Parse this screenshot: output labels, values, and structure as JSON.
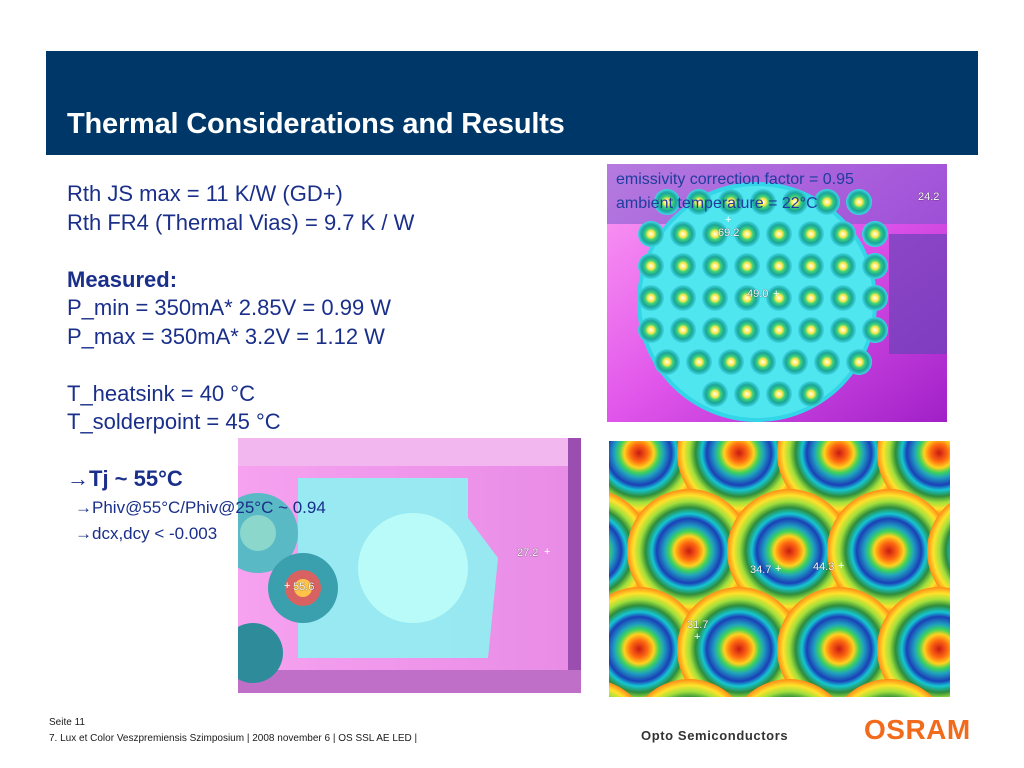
{
  "slide": {
    "title": "Thermal Considerations and Results"
  },
  "annotation": {
    "emissivity": "emissivity correction factor  = 0.95",
    "ambient": "ambient temperature = 22°C"
  },
  "body": {
    "line1": "Rth JS max =  11 K/W (GD+)",
    "line2": "Rth FR4 (Thermal Vias) = 9.7 K / W",
    "measured_heading": "Measured:",
    "pmin": "P_min = 350mA* 2.85V = 0.99 W",
    "pmax": "P_max = 350mA* 3.2V = 1.12 W",
    "heatsink": "T_heatsink = 40 °C",
    "solderpoint": "T_solderpoint = 45 °C",
    "tj": "Tj ~ 55°C",
    "phiv": "Phiv@55°C/Phiv@25°C ~ 0.94",
    "dcx": "dcx,dcy < -0.003"
  },
  "thermal_images": {
    "top_right": {
      "labels": [
        "24.2",
        "69.2",
        "49.0"
      ]
    },
    "bottom_left": {
      "labels": [
        "27.2",
        "55.6"
      ]
    },
    "bottom_right": {
      "labels": [
        "34.7",
        "44.3",
        "31.7"
      ]
    }
  },
  "footer": {
    "page": "Seite 11",
    "event": "7. Lux et Color Veszpremiensis Szimposium  | 2008 november 6 | OS SSL AE LED |",
    "tagline": "Opto Semiconductors",
    "logo": "OSRAM"
  },
  "colors": {
    "header": "#003769",
    "text": "#1a2f8a",
    "logo": "#f26b1d"
  }
}
